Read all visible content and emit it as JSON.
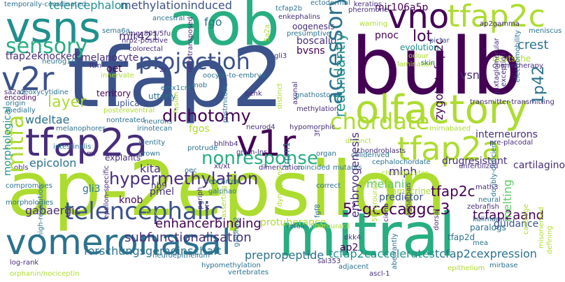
{
  "palette": {
    "background": "#ffffff",
    "colormap": "viridis",
    "colors": {
      "dark_purple": "#440154",
      "purple": "#472d7b",
      "indigo": "#3b528b",
      "blue": "#2c728e",
      "teal": "#21908d",
      "green_teal": "#28ae80",
      "green": "#5ec962",
      "lime": "#addc30",
      "yellow": "#fde725"
    }
  },
  "words": [
    {
      "text": "tfap2",
      "color": "#3b528b"
    },
    {
      "text": "ap-2epsilon",
      "color": "#addc30"
    },
    {
      "text": "bulb",
      "color": "#440154"
    },
    {
      "text": "aob",
      "color": "#28ae80"
    },
    {
      "text": "mitral",
      "color": "#28ae80"
    },
    {
      "text": "vomeronasal",
      "color": "#2c728e"
    },
    {
      "text": "vsns",
      "color": "#21908d"
    },
    {
      "text": "olfactory",
      "color": "#addc30"
    },
    {
      "text": "tfap2a",
      "color": "#472d7b"
    },
    {
      "text": "tfap2a",
      "color": "#addc30"
    },
    {
      "text": "tfap2c",
      "color": "#addc30"
    },
    {
      "text": "v1r",
      "color": "#440154"
    },
    {
      "text": "v2r",
      "color": "#3b528b"
    },
    {
      "text": "vno",
      "color": "#440154"
    },
    {
      "text": "chordate",
      "color": "#addc30"
    },
    {
      "text": "projection",
      "color": "#3b528b"
    },
    {
      "text": "telencephalic",
      "color": "#3b528b"
    },
    {
      "text": "sensory",
      "color": "#28ae80"
    },
    {
      "text": "nonresponse",
      "color": "#28ae80"
    },
    {
      "text": "hypermethylation",
      "color": "#472d7b"
    },
    {
      "text": "dichotomy",
      "color": "#440154"
    },
    {
      "text": "accessory",
      "color": "#2c728e"
    },
    {
      "text": "mitfa",
      "color": "#addc30"
    },
    {
      "text": "telencephalon",
      "color": "#21908d"
    },
    {
      "text": "methylationinduced",
      "color": "#3b528b"
    },
    {
      "text": "mir421",
      "color": "#472d7b"
    },
    {
      "text": "layer",
      "color": "#addc30"
    },
    {
      "text": "lot",
      "color": "#440154"
    },
    {
      "text": "redundantly",
      "color": "#21908d"
    },
    {
      "text": "5'-gcccaggc-3",
      "color": "#440154"
    },
    {
      "text": "tfap2c",
      "color": "#440154"
    },
    {
      "text": "tcfap2aand",
      "color": "#440154"
    },
    {
      "text": "subfunctionalisation",
      "color": "#472d7b"
    },
    {
      "text": "enhancerbinding",
      "color": "#440154"
    },
    {
      "text": "forschungsgemeinschaft",
      "color": "#2c728e"
    },
    {
      "text": "prepropeptide",
      "color": "#2c728e"
    },
    {
      "text": "tcfap2caccelerates",
      "color": "#21908d"
    },
    {
      "text": "tcfap2cexpression",
      "color": "#2c728e"
    },
    {
      "text": "1p42",
      "color": "#2c728e"
    },
    {
      "text": "zygotictcfap2c",
      "color": "#440154"
    },
    {
      "text": "fgo",
      "color": "#2c728e"
    },
    {
      "text": "tfap2eknocked",
      "color": "#472d7b"
    },
    {
      "text": "melanocyte",
      "color": "#472d7b"
    },
    {
      "text": "mir106a5p",
      "color": "#440154"
    },
    {
      "text": "pnoc",
      "color": "#440154"
    },
    {
      "text": "crest",
      "color": "#2c728e"
    },
    {
      "text": "wdeltae",
      "color": "#2c728e"
    },
    {
      "text": "kita",
      "color": "#472d7b"
    },
    {
      "text": "epicolon",
      "color": "#2c728e"
    },
    {
      "text": "knob",
      "color": "#440154"
    },
    {
      "text": "gli3",
      "color": "#2c728e"
    },
    {
      "text": "gabaergic",
      "color": "#472d7b"
    },
    {
      "text": "mlph",
      "color": "#472d7b"
    },
    {
      "text": "melanin",
      "color": "#5ec962"
    },
    {
      "text": "embryogenesis",
      "color": "#472d7b"
    },
    {
      "text": "melting",
      "color": "#5ec962"
    },
    {
      "text": "cartilaginous",
      "color": "#472d7b"
    },
    {
      "text": "predictor",
      "color": "#3b528b"
    },
    {
      "text": "drugresistant",
      "color": "#472d7b"
    },
    {
      "text": "interneurons",
      "color": "#472d7b"
    },
    {
      "text": "guidance",
      "color": "#3b528b"
    },
    {
      "text": "vsn",
      "color": "#472d7b"
    },
    {
      "text": "fgos",
      "color": "#addc30"
    },
    {
      "text": "nb9",
      "color": "#472d7b"
    },
    {
      "text": "pmel",
      "color": "#472d7b"
    },
    {
      "text": "explants",
      "color": "#472d7b"
    },
    {
      "text": "morphological",
      "color": "#21908d"
    },
    {
      "text": "bvsns",
      "color": "#440154"
    },
    {
      "text": "boscalid",
      "color": "#472d7b"
    },
    {
      "text": "oogenesis",
      "color": "#472d7b"
    },
    {
      "text": "ap2",
      "color": "#440154"
    },
    {
      "text": "tfap2d",
      "color": "#2c728e"
    },
    {
      "text": "paralogs",
      "color": "#2c728e"
    },
    {
      "text": "amacrine",
      "color": "#addc30"
    },
    {
      "text": "oet",
      "color": "#440154"
    },
    {
      "text": "duplication",
      "color": "#3b528b"
    },
    {
      "text": "territory",
      "color": "#440154"
    },
    {
      "text": "ectodermal",
      "color": "#2c728e"
    },
    {
      "text": "tcfap2b",
      "color": "#2c728e"
    },
    {
      "text": "enkephalins",
      "color": "#472d7b"
    },
    {
      "text": "keratins",
      "color": "#472d7b"
    },
    {
      "text": "pheromone",
      "color": "#472d7b"
    },
    {
      "text": "temporally-coordinated",
      "color": "#2c728e"
    },
    {
      "text": "electromobility",
      "color": "#2c728e"
    },
    {
      "text": "deutsche",
      "color": "#addc30"
    },
    {
      "text": "evolution",
      "color": "#21908d"
    },
    {
      "text": "lamination",
      "color": "#addc30"
    },
    {
      "text": "skin",
      "color": "#2c728e"
    },
    {
      "text": "pictar",
      "color": "#3b528b"
    },
    {
      "text": "ap2gamma",
      "color": "#472d7b"
    },
    {
      "text": "chemotherapy",
      "color": "#472d7b"
    },
    {
      "text": "neurog1/2",
      "color": "#2c728e"
    },
    {
      "text": "colorectal",
      "color": "#472d7b"
    },
    {
      "text": "mgc803/5fu",
      "color": "#472d7b"
    },
    {
      "text": "nrp2-positive",
      "color": "#472d7b"
    },
    {
      "text": "ancestral",
      "color": "#2c728e"
    },
    {
      "text": "sema6a",
      "color": "#2c728e"
    },
    {
      "text": "ftm",
      "color": "#472d7b"
    },
    {
      "text": "innervate",
      "color": "#addc30"
    },
    {
      "text": "oocyte-to-embryo",
      "color": "#2c728e"
    },
    {
      "text": "sa2a2",
      "color": "#472d7b"
    },
    {
      "text": "deoxycytidine",
      "color": "#2c728e"
    },
    {
      "text": "encoding",
      "color": "#440154"
    },
    {
      "text": "origin",
      "color": "#2c728e"
    },
    {
      "text": "medially",
      "color": "#2c728e"
    },
    {
      "text": "posteroventral",
      "color": "#addc30"
    },
    {
      "text": "nontreated",
      "color": "#2c728e"
    },
    {
      "text": "utterly",
      "color": "#2c728e"
    },
    {
      "text": "emx1cre",
      "color": "#2c728e"
    },
    {
      "text": "mob",
      "color": "#2c728e"
    },
    {
      "text": "penk",
      "color": "#472d7b"
    },
    {
      "text": "methylation",
      "color": "#472d7b"
    },
    {
      "text": "transmitter-transmitting",
      "color": "#472d7b"
    },
    {
      "text": "irinotecan",
      "color": "#2c728e"
    },
    {
      "text": "neurons",
      "color": "#2c728e"
    },
    {
      "text": "neurod4",
      "color": "#472d7b"
    },
    {
      "text": "hypomorphic",
      "color": "#472d7b"
    },
    {
      "text": "bhlhb4",
      "color": "#472d7b"
    },
    {
      "text": "gmrh-lns",
      "color": "#472d7b"
    },
    {
      "text": "mirnabased",
      "color": "#addc30"
    },
    {
      "text": "chondroblasts",
      "color": "#472d7b"
    },
    {
      "text": "pre-placodal",
      "color": "#472d7b"
    },
    {
      "text": "unfertilized",
      "color": "#472d7b"
    },
    {
      "text": "cephalochordate",
      "color": "#2c728e"
    },
    {
      "text": "cellderived",
      "color": "#2c728e"
    },
    {
      "text": "dimerization",
      "color": "#472d7b"
    },
    {
      "text": "coincided",
      "color": "#2c728e"
    },
    {
      "text": "mutants",
      "color": "#2c728e"
    },
    {
      "text": "xt/xt",
      "color": "#472d7b"
    },
    {
      "text": "neocortex",
      "color": "#2c728e"
    },
    {
      "text": "galphao",
      "color": "#2c728e"
    },
    {
      "text": "protuberance",
      "color": "#addc30"
    },
    {
      "text": "retain",
      "color": "#2c728e"
    },
    {
      "text": "fluorouracil",
      "color": "#addc30"
    },
    {
      "text": "correct",
      "color": "#2c728e"
    },
    {
      "text": "dkk4",
      "color": "#472d7b"
    },
    {
      "text": "math3",
      "color": "#472d7b"
    },
    {
      "text": "neural",
      "color": "#2c728e"
    },
    {
      "text": "zebrafish",
      "color": "#472d7b"
    },
    {
      "text": "kallmann",
      "color": "#2c728e"
    },
    {
      "text": "mea",
      "color": "#2c728e"
    },
    {
      "text": "mirbase",
      "color": "#2c728e"
    },
    {
      "text": "epithelium",
      "color": "#addc30"
    },
    {
      "text": "sal353",
      "color": "#472d7b"
    },
    {
      "text": "adjacent",
      "color": "#2c728e"
    },
    {
      "text": "vertebrates",
      "color": "#2c728e"
    },
    {
      "text": "orphanin/nociceptin",
      "color": "#addc30"
    },
    {
      "text": "log-rank",
      "color": "#472d7b"
    },
    {
      "text": "compromises",
      "color": "#2c728e"
    },
    {
      "text": "morphologies",
      "color": "#2c728e"
    },
    {
      "text": "high-resolution",
      "color": "#2c728e"
    },
    {
      "text": "intestinalis",
      "color": "#2c728e"
    },
    {
      "text": "pdyn",
      "color": "#addc30"
    },
    {
      "text": "grown",
      "color": "#2c728e"
    },
    {
      "text": "identity",
      "color": "#2c728e"
    },
    {
      "text": "protrude",
      "color": "#2c728e"
    },
    {
      "text": "melanophores",
      "color": "#2c728e"
    },
    {
      "text": "oec",
      "color": "#2c728e"
    },
    {
      "text": "warning",
      "color": "#addc30"
    },
    {
      "text": "odour",
      "color": "#addc30"
    },
    {
      "text": "presumptive",
      "color": "#2c728e"
    },
    {
      "text": "gnathostome",
      "color": "#2c728e"
    },
    {
      "text": "organ",
      "color": "#2c728e"
    },
    {
      "text": "chondrocytes",
      "color": "#addc30"
    },
    {
      "text": "cartilage",
      "color": "#addc30"
    },
    {
      "text": "exception",
      "color": "#472d7b"
    },
    {
      "text": "juxtaglomerular",
      "color": "#472d7b"
    },
    {
      "text": "doubly-deficient",
      "color": "#2c728e"
    },
    {
      "text": "dynorphins",
      "color": "#addc30"
    },
    {
      "text": "aberrantly",
      "color": "#2c728e"
    },
    {
      "text": "ascl-1",
      "color": "#472d7b"
    },
    {
      "text": "agnathan",
      "color": "#472d7b"
    },
    {
      "text": "ciona",
      "color": "#472d7b"
    },
    {
      "text": "5fluorouracil",
      "color": "#addc30"
    },
    {
      "text": "trpm1",
      "color": "#2c728e"
    },
    {
      "text": "axonal",
      "color": "#472d7b"
    },
    {
      "text": "postmitotic",
      "color": "#2c728e"
    },
    {
      "text": "fusion",
      "color": "#addc30"
    },
    {
      "text": "vr",
      "color": "#472d7b"
    },
    {
      "text": "dorsal",
      "color": "#472d7b"
    },
    {
      "text": "hypomethylation",
      "color": "#2c728e"
    },
    {
      "text": "misoriented",
      "color": "#addc30"
    },
    {
      "text": "defining",
      "color": "#addc30"
    },
    {
      "text": "gli3",
      "color": "#472d7b"
    },
    {
      "text": "5a2a",
      "color": "#addc30"
    },
    {
      "text": "3f",
      "color": "#472d7b"
    },
    {
      "text": "2r",
      "color": "#472d7b"
    },
    {
      "text": "retrotransposed",
      "color": "#472d7b"
    },
    {
      "text": "neuroepithelium",
      "color": "#2c728e"
    },
    {
      "text": "galphai2",
      "color": "#2c728e"
    },
    {
      "text": "epsilon-specific",
      "color": "#472d7b"
    },
    {
      "text": "fgf8",
      "color": "#2c728e"
    },
    {
      "text": "distinct",
      "color": "#addc30"
    },
    {
      "text": "asserting",
      "color": "#addc30"
    },
    {
      "text": "pgriph",
      "color": "#472d7b"
    },
    {
      "text": "obls",
      "color": "#472d7b"
    },
    {
      "text": "mf",
      "color": "#472d7b"
    },
    {
      "text": "meniscus",
      "color": "#2c728e"
    }
  ]
}
